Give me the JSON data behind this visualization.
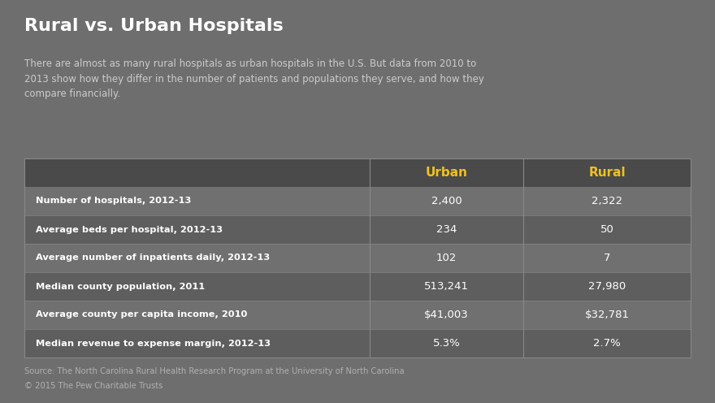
{
  "title": "Rural vs. Urban Hospitals",
  "subtitle": "There are almost as many rural hospitals as urban hospitals in the U.S. But data from 2010 to\n2013 show how they differ in the number of patients and populations they serve, and how they\ncompare financially.",
  "bg_color": "#6e6e6e",
  "header_row_color": "#4a4a4a",
  "odd_row_color": "#707070",
  "even_row_color": "#5e5e5e",
  "header_text_color": "#f0c020",
  "row_label_color": "#ffffff",
  "row_value_color": "#ffffff",
  "title_color": "#ffffff",
  "subtitle_color": "#cccccc",
  "source_color": "#b0b0b0",
  "divider_color": "#888888",
  "rows": [
    [
      "Number of hospitals, 2012-13",
      "2,400",
      "2,322"
    ],
    [
      "Average beds per hospital, 2012-13",
      "234",
      "50"
    ],
    [
      "Average number of inpatients daily, 2012-13",
      "102",
      "7"
    ],
    [
      "Median county population, 2011",
      "513,241",
      "27,980"
    ],
    [
      "Average county per capita income, 2010",
      "$41,003",
      "$32,781"
    ],
    [
      "Median revenue to expense margin, 2012-13",
      "5.3%",
      "2.7%"
    ]
  ],
  "source_line1": "Source: The North Carolina Rural Health Research Program at the University of North Carolina",
  "source_line2": "© 2015 The Pew Charitable Trusts",
  "fig_width": 8.8,
  "fig_height": 4.96,
  "dpi": 100
}
